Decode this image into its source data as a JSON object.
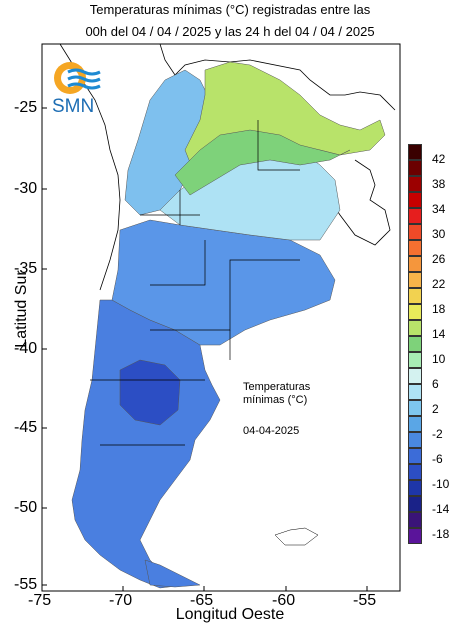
{
  "title_line1": "Temperaturas mínimas (°C) registradas entre las",
  "title_line2": "00h del 04 / 04 / 2025 y las 24 h del 04 / 04 / 2025",
  "logo_text": "SMN",
  "axes": {
    "y_title": "Latitud Sur",
    "x_title": "Longitud Oeste",
    "y_ticks": [
      "-25",
      "-30",
      "-35",
      "-40",
      "-45",
      "-50",
      "-55"
    ],
    "x_ticks": [
      "-75",
      "-70",
      "-65",
      "-60",
      "-55"
    ]
  },
  "note": {
    "line1": "Temperaturas",
    "line2": "mínimas (°C)",
    "date": "04-04-2025"
  },
  "legend": {
    "labels": [
      "42",
      "38",
      "34",
      "30",
      "26",
      "22",
      "18",
      "14",
      "10",
      "6",
      "2",
      "-2",
      "-6",
      "-10",
      "-14",
      "-18"
    ],
    "colors": [
      "#3a0000",
      "#6b0000",
      "#9c0000",
      "#c80000",
      "#e61e1e",
      "#f04a28",
      "#f57030",
      "#f5963c",
      "#f7b44a",
      "#f2d250",
      "#e8ea5a",
      "#b8e36a",
      "#7ed27a",
      "#a8ecb4",
      "#d4f2f0",
      "#aee2f4",
      "#7ec6ee",
      "#5aa6e6",
      "#4a88e0",
      "#3c6cd8",
      "#2c4ec4",
      "#1e36a8",
      "#1a2288",
      "#3a1478",
      "#5a149a"
    ]
  },
  "chart_data": {
    "type": "heatmap",
    "title": "Temperaturas mínimas (°C) registradas entre las 00h del 04 / 04 / 2025 y las 24 h del 04 / 04 / 2025",
    "xlabel": "Longitud Oeste",
    "ylabel": "Latitud Sur",
    "xlim": [
      -75,
      -53
    ],
    "ylim": [
      -55,
      -21
    ],
    "legend_levels": [
      42,
      38,
      34,
      30,
      26,
      22,
      18,
      14,
      10,
      6,
      2,
      -2,
      -6,
      -10,
      -14,
      -18
    ]
  }
}
